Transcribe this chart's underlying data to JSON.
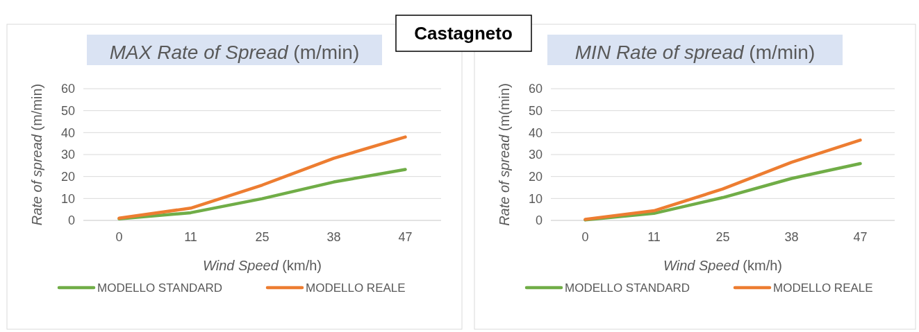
{
  "chart_data": [
    {
      "type": "other",
      "title": "Castagneto"
    },
    {
      "type": "line",
      "title": "MAX Rate of Spread (m/min)",
      "xlabel": "Wind Speed (km/h)",
      "ylabel": "Rate of spread (m/min)",
      "categories": [
        "0",
        "11",
        "25",
        "38",
        "47"
      ],
      "series": [
        {
          "name": "MODELLO STANDARD",
          "color": "#70ad47",
          "values": [
            0.7,
            3.5,
            9.9,
            17.5,
            23.2
          ]
        },
        {
          "name": "MODELLO REALE",
          "color": "#ed7d31",
          "values": [
            1.0,
            5.6,
            16.1,
            28.3,
            38.0
          ]
        }
      ],
      "ylim": [
        0,
        60
      ],
      "yticks": [
        0,
        10,
        20,
        30,
        40,
        50,
        60
      ],
      "grid": "y",
      "legend": "bottom",
      "marker": "none"
    },
    {
      "type": "line",
      "title": "MIN Rate of spread (m/min)",
      "xlabel": "Wind Speed (km/h)",
      "ylabel": "Rate of spread (m(min)",
      "categories": [
        "0",
        "11",
        "25",
        "38",
        "47"
      ],
      "series": [
        {
          "name": "MODELLO STANDARD",
          "color": "#70ad47",
          "values": [
            0.2,
            3.2,
            10.4,
            19.1,
            25.9
          ]
        },
        {
          "name": "MODELLO REALE",
          "color": "#ed7d31",
          "values": [
            0.5,
            4.4,
            14.3,
            26.5,
            36.6
          ]
        }
      ],
      "ylim": [
        0,
        60
      ],
      "yticks": [
        0,
        10,
        20,
        30,
        40,
        50,
        60
      ],
      "grid": "y",
      "legend": "bottom",
      "marker": "none"
    }
  ]
}
